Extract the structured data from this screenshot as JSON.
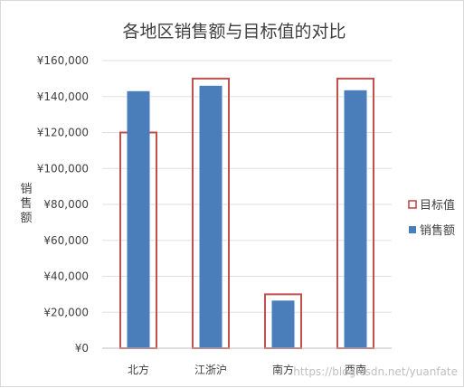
{
  "colors": {
    "bar": "#4a7ebb",
    "target_outline": "#c0504d",
    "grid": "#e0e0e0",
    "text": "#404040"
  },
  "watermark": "https://blog.csdn.net/yuanfate",
  "chart_data": {
    "type": "bar",
    "title": "各地区销售额与目标值的对比",
    "xlabel": "",
    "ylabel": "销售额",
    "categories": [
      "北方",
      "江浙沪",
      "南方",
      "西南"
    ],
    "series": [
      {
        "name": "销售额",
        "values": [
          143000,
          146000,
          26500,
          143500
        ],
        "color": "#4a7ebb",
        "style": "filled"
      },
      {
        "name": "目标值",
        "values": [
          120000,
          150000,
          30000,
          150000
        ],
        "color": "#c0504d",
        "style": "outline"
      }
    ],
    "ylim": [
      0,
      160000
    ],
    "yticks": [
      "¥0",
      "¥20,000",
      "¥40,000",
      "¥60,000",
      "¥80,000",
      "¥100,000",
      "¥120,000",
      "¥140,000",
      "¥160,000"
    ],
    "legend": {
      "position": "right",
      "entries": [
        "目标值",
        "销售额"
      ]
    },
    "grid": true
  }
}
